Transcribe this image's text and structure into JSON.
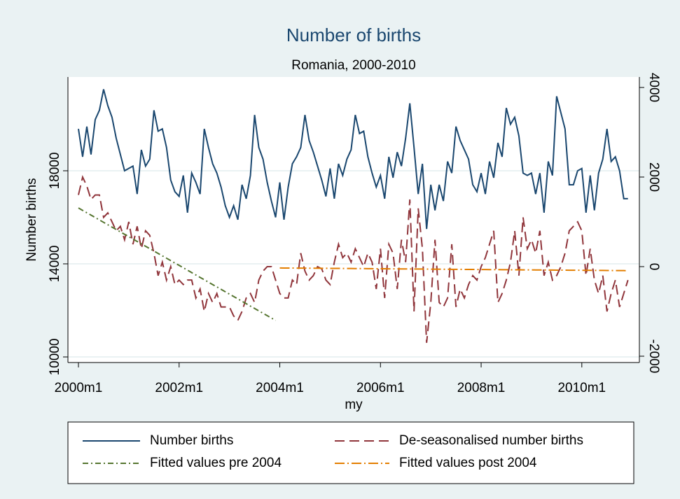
{
  "chart_data": {
    "type": "line",
    "title": "Number of births",
    "subtitle": "Romania, 2000-2010",
    "x_label": "my",
    "y_label": "Number births",
    "x": [
      "2000m1",
      "2000m2",
      "2000m3",
      "2000m4",
      "2000m5",
      "2000m6",
      "2000m7",
      "2000m8",
      "2000m9",
      "2000m10",
      "2000m11",
      "2000m12",
      "2001m1",
      "2001m2",
      "2001m3",
      "2001m4",
      "2001m5",
      "2001m6",
      "2001m7",
      "2001m8",
      "2001m9",
      "2001m10",
      "2001m11",
      "2001m12",
      "2002m1",
      "2002m2",
      "2002m3",
      "2002m4",
      "2002m5",
      "2002m6",
      "2002m7",
      "2002m8",
      "2002m9",
      "2002m10",
      "2002m11",
      "2002m12",
      "2003m1",
      "2003m2",
      "2003m3",
      "2003m4",
      "2003m5",
      "2003m6",
      "2003m7",
      "2003m8",
      "2003m9",
      "2003m10",
      "2003m11",
      "2003m12",
      "2004m1",
      "2004m2",
      "2004m3",
      "2004m4",
      "2004m5",
      "2004m6",
      "2004m7",
      "2004m8",
      "2004m9",
      "2004m10",
      "2004m11",
      "2004m12",
      "2005m1",
      "2005m2",
      "2005m3",
      "2005m4",
      "2005m5",
      "2005m6",
      "2005m7",
      "2005m8",
      "2005m9",
      "2005m10",
      "2005m11",
      "2005m12",
      "2006m1",
      "2006m2",
      "2006m3",
      "2006m4",
      "2006m5",
      "2006m6",
      "2006m7",
      "2006m8",
      "2006m9",
      "2006m10",
      "2006m11",
      "2006m12",
      "2007m1",
      "2007m2",
      "2007m3",
      "2007m4",
      "2007m5",
      "2007m6",
      "2007m7",
      "2007m8",
      "2007m9",
      "2007m10",
      "2007m11",
      "2007m12",
      "2008m1",
      "2008m2",
      "2008m3",
      "2008m4",
      "2008m5",
      "2008m6",
      "2008m7",
      "2008m8",
      "2008m9",
      "2008m10",
      "2008m11",
      "2008m12",
      "2009m1",
      "2009m2",
      "2009m3",
      "2009m4",
      "2009m5",
      "2009m6",
      "2009m7",
      "2009m8",
      "2009m9",
      "2009m10",
      "2009m11",
      "2009m12",
      "2010m1",
      "2010m2",
      "2010m3",
      "2010m4",
      "2010m5",
      "2010m6",
      "2010m7",
      "2010m8",
      "2010m9",
      "2010m10",
      "2010m11",
      "2010m12"
    ],
    "xticks": [
      "2000m1",
      "2002m1",
      "2004m1",
      "2006m1",
      "2008m1",
      "2010m1"
    ],
    "ylim": [
      9760,
      22030
    ],
    "yticks": [
      10000,
      14000,
      18000
    ],
    "y2lim": [
      -2141,
      4234
    ],
    "y2ticks": [
      -2000,
      0,
      2000,
      4000
    ],
    "grid": true,
    "legend_position": "bottom",
    "series": [
      {
        "name": "Number births",
        "color": "#1a476f",
        "dash": "none",
        "axis": "y",
        "values": [
          19800,
          18600,
          19900,
          18700,
          20200,
          20600,
          21500,
          20800,
          20300,
          19400,
          18700,
          18000,
          18100,
          18200,
          17000,
          18900,
          18200,
          18500,
          20600,
          19700,
          19800,
          19000,
          17600,
          17100,
          16900,
          17800,
          16200,
          17900,
          17500,
          17000,
          19800,
          19000,
          18300,
          17900,
          17300,
          16500,
          16000,
          16500,
          15900,
          17400,
          16800,
          17800,
          20400,
          19000,
          18500,
          17500,
          16700,
          16000,
          17500,
          15900,
          17300,
          18300,
          18600,
          19000,
          20400,
          19300,
          18800,
          18200,
          17600,
          16900,
          18100,
          16800,
          18300,
          17800,
          18500,
          18900,
          20400,
          19600,
          19700,
          18600,
          17900,
          17300,
          17800,
          16800,
          18600,
          17700,
          18800,
          18200,
          19400,
          20900,
          19000,
          17000,
          18300,
          15500,
          17400,
          16300,
          17400,
          16700,
          18400,
          17900,
          19900,
          19300,
          18900,
          18500,
          17400,
          17100,
          17900,
          17000,
          18400,
          17700,
          19200,
          18600,
          20700,
          20000,
          20300,
          19500,
          17900,
          17800,
          17900,
          17000,
          17900,
          16200,
          18400,
          17800,
          21200,
          20500,
          19800,
          17400,
          17400,
          18000,
          18100,
          16200,
          17800,
          16300,
          17900,
          18500,
          19800,
          18400,
          18600,
          18000,
          16800,
          16800
        ]
      },
      {
        "name": "De-seasonalised number births",
        "color": "#90353b",
        "dash": "14 7",
        "axis": "y2",
        "values": [
          1600,
          2000,
          1800,
          1500,
          1600,
          1600,
          1100,
          1200,
          1000,
          800,
          900,
          600,
          1000,
          500,
          900,
          400,
          800,
          700,
          300,
          -200,
          100,
          -300,
          0,
          -400,
          -300,
          -400,
          -300,
          -300,
          -700,
          -500,
          -1000,
          -600,
          -800,
          -600,
          -900,
          -900,
          -900,
          -1100,
          -1200,
          -1000,
          -700,
          -600,
          -800,
          -300,
          -100,
          0,
          0,
          -300,
          -600,
          -700,
          -700,
          -300,
          -400,
          300,
          -100,
          -300,
          -200,
          0,
          -50,
          -300,
          -400,
          100,
          500,
          200,
          300,
          100,
          400,
          200,
          0,
          300,
          100,
          -500,
          400,
          -700,
          500,
          300,
          -500,
          600,
          100,
          1500,
          -1000,
          1300,
          400,
          -1700,
          -800,
          600,
          -800,
          -900,
          -700,
          500,
          -900,
          -500,
          -700,
          -400,
          -200,
          -300,
          0,
          200,
          500,
          800,
          -800,
          -600,
          -300,
          100,
          800,
          -200,
          1100,
          400,
          600,
          300,
          800,
          -200,
          100,
          -300,
          -200,
          0,
          300,
          800,
          900,
          1000,
          800,
          -200,
          400,
          -300,
          -600,
          -200,
          -1000,
          -600,
          -300,
          -900,
          -600,
          -300
        ]
      },
      {
        "name": "Fitted values pre 2004",
        "color": "#55752f",
        "dash": "8 4 2 4",
        "axis": "y2",
        "values": [
          1310,
          1256,
          1203,
          1150,
          1096,
          1043,
          989,
          936,
          882,
          829,
          776,
          722,
          669,
          615,
          562,
          508,
          455,
          402,
          348,
          295,
          241,
          188,
          134,
          81,
          28,
          -26,
          -79,
          -133,
          -186,
          -240,
          -293,
          -346,
          -400,
          -453,
          -507,
          -560,
          -614,
          -667,
          -720,
          -774,
          -827,
          -881,
          -934,
          -988,
          -1041,
          -1094,
          -1148,
          -1201,
          null,
          null,
          null,
          null,
          null,
          null,
          null,
          null,
          null,
          null,
          null,
          null,
          null,
          null,
          null,
          null,
          null,
          null,
          null,
          null,
          null,
          null,
          null,
          null,
          null,
          null,
          null,
          null,
          null,
          null,
          null,
          null,
          null,
          null,
          null,
          null,
          null,
          null,
          null,
          null,
          null,
          null,
          null,
          null,
          null,
          null,
          null,
          null,
          null,
          null,
          null,
          null,
          null,
          null,
          null,
          null,
          null,
          null,
          null,
          null,
          null,
          null,
          null,
          null,
          null,
          null,
          null,
          null,
          null,
          null,
          null,
          null,
          null,
          null,
          null,
          null,
          null,
          null,
          null,
          null,
          null,
          null,
          null,
          null
        ]
      },
      {
        "name": "Fitted values post 2004",
        "color": "#e37e00",
        "dash": "14 4 2 4",
        "axis": "y2",
        "values": [
          null,
          null,
          null,
          null,
          null,
          null,
          null,
          null,
          null,
          null,
          null,
          null,
          null,
          null,
          null,
          null,
          null,
          null,
          null,
          null,
          null,
          null,
          null,
          null,
          null,
          null,
          null,
          null,
          null,
          null,
          null,
          null,
          null,
          null,
          null,
          null,
          null,
          null,
          null,
          null,
          null,
          null,
          null,
          null,
          null,
          null,
          null,
          null,
          -30,
          -31,
          -31,
          -32,
          -33,
          -34,
          -34,
          -35,
          -36,
          -36,
          -37,
          -38,
          -39,
          -39,
          -40,
          -41,
          -42,
          -42,
          -43,
          -44,
          -44,
          -45,
          -46,
          -47,
          -47,
          -48,
          -49,
          -49,
          -50,
          -51,
          -52,
          -52,
          -53,
          -54,
          -54,
          -55,
          -56,
          -57,
          -57,
          -58,
          -59,
          -60,
          -60,
          -61,
          -62,
          -62,
          -63,
          -64,
          -65,
          -65,
          -66,
          -67,
          -67,
          -68,
          -69,
          -70,
          -70,
          -71,
          -72,
          -72,
          -73,
          -74,
          -75,
          -75,
          -76,
          -77,
          -78,
          -78,
          -79,
          -80,
          -80,
          -81,
          -82,
          -83,
          -83,
          -84,
          -85,
          -85,
          -86,
          -87,
          -88,
          -88,
          -89,
          -90
        ]
      }
    ]
  }
}
